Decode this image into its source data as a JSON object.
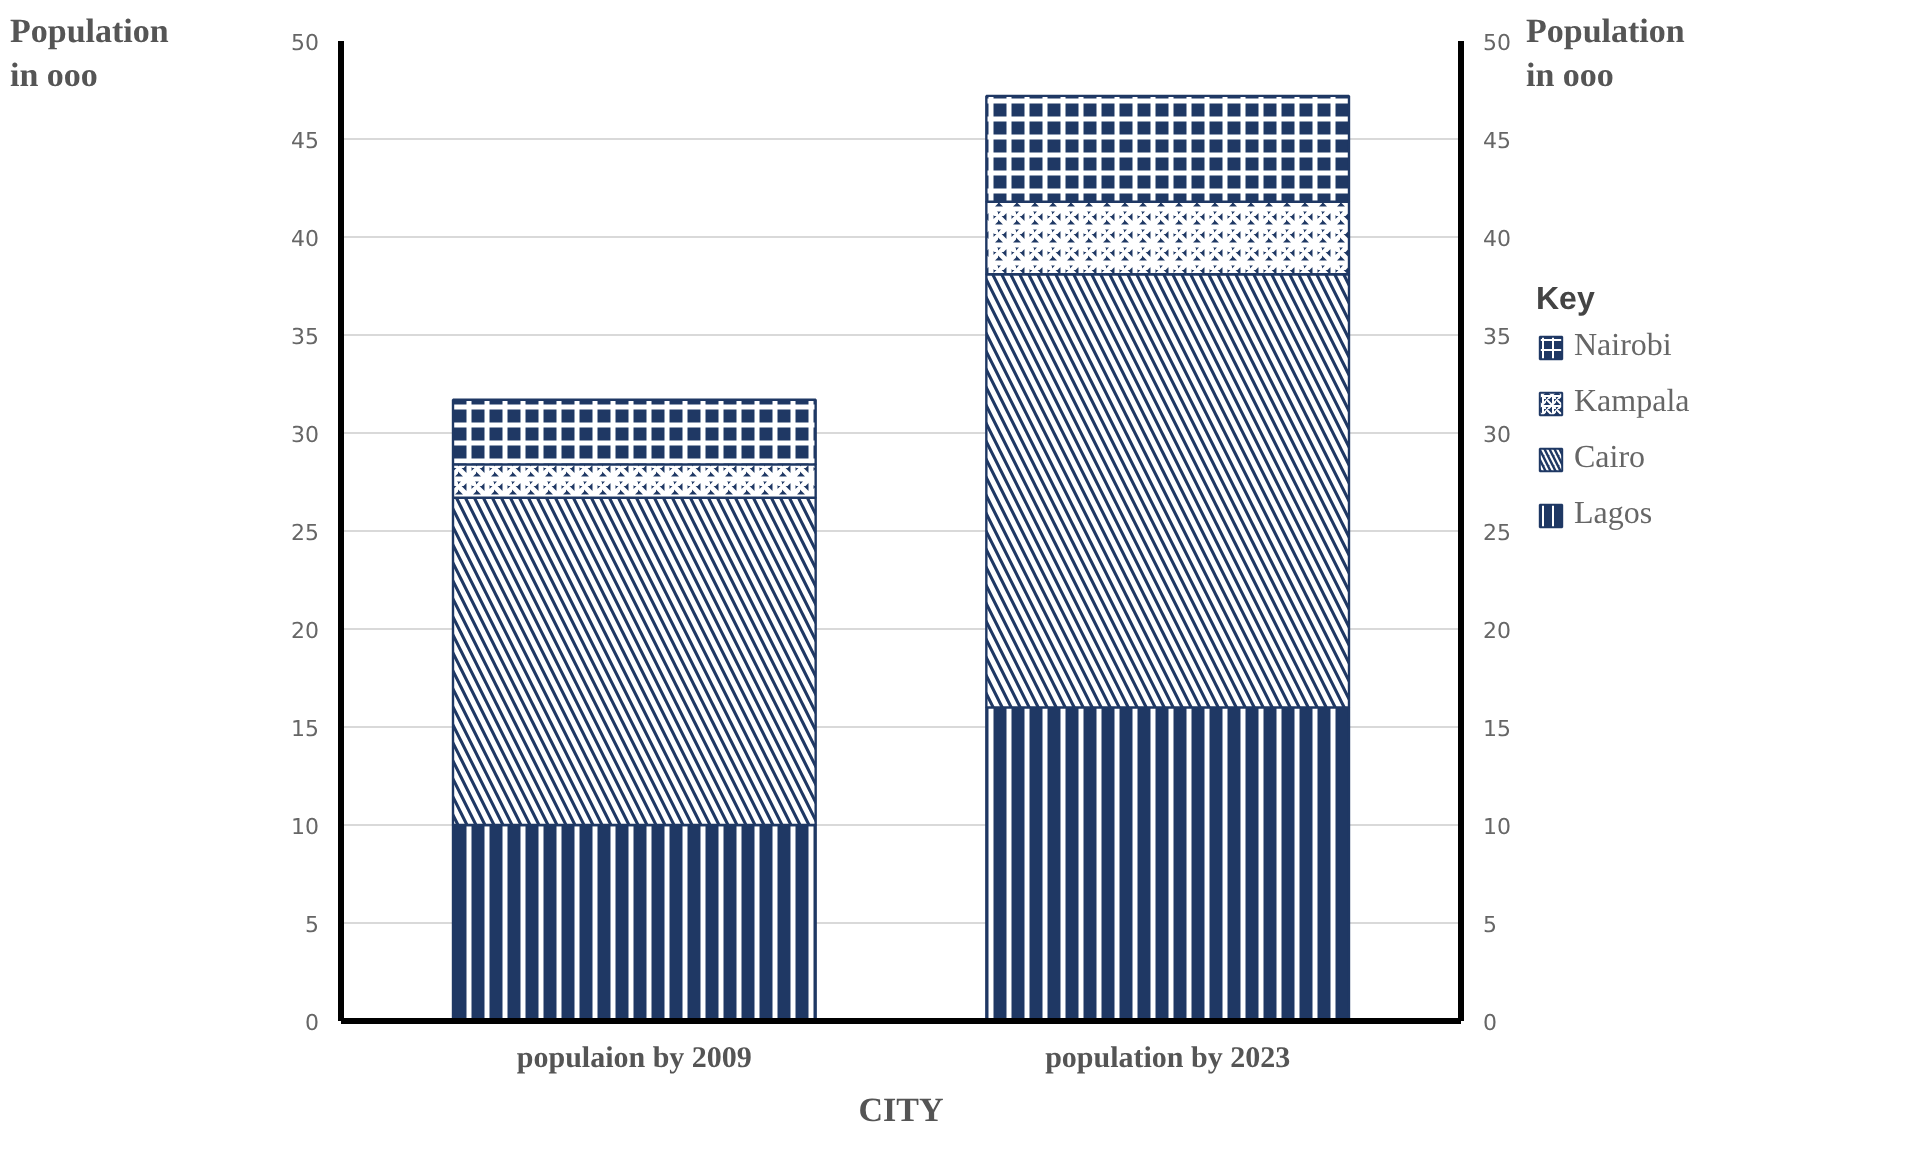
{
  "chart_data": {
    "type": "bar",
    "stacked": true,
    "xlabel": "CITY",
    "ylabel": "Population in ooo",
    "y2label": "Population in ooo",
    "legend_title": "Key",
    "categories": [
      "populaion by 2009",
      "population by 2023"
    ],
    "series": [
      {
        "name": "Lagos",
        "color": "#1f3864",
        "values": [
          10,
          16
        ]
      },
      {
        "name": "Cairo",
        "color": "#1f3864",
        "values": [
          16.7,
          22.1
        ]
      },
      {
        "name": "Kampala",
        "color": "#1f3864",
        "values": [
          1.7,
          3.7
        ]
      },
      {
        "name": "Nairobi",
        "color": "#1f3864",
        "values": [
          3.3,
          5.4
        ]
      }
    ],
    "ylim": [
      0,
      50
    ],
    "yticks": [
      0,
      5,
      10,
      15,
      20,
      25,
      30,
      35,
      40,
      45,
      50
    ],
    "y2lim": [
      0,
      50
    ],
    "y2ticks": [
      0,
      5,
      10,
      15,
      20,
      25,
      30,
      35,
      40,
      45,
      50
    ],
    "grid": "y",
    "legend": "right"
  }
}
